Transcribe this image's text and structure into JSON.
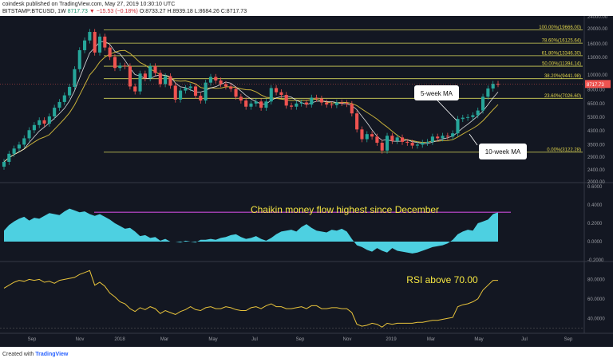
{
  "header": {
    "author": "coindesk",
    "published": "published on TradingView.com, May 27, 2019 10:30:10 UTC",
    "symbol": "BITSTAMP:BTCUSD, 1W",
    "price": "8717.73",
    "change": "▼ −15.53 (−0.18%)",
    "ohlc": "O:8733.27 H:8939.18 L:8684.26 C:8717.73"
  },
  "footer": {
    "created_with": "Created with",
    "brand": "TradingView"
  },
  "colors": {
    "background": "#131722",
    "candle_up": "#26a69a",
    "candle_down": "#ef5350",
    "fib_line": "#d6d65a",
    "ma5": "#ffffff",
    "ma10": "#c9b23a",
    "cmf_fill": "#4dd0e1",
    "cmf_line": "#c64ad6",
    "rsi_line": "#e8c33b",
    "price_tag": "#ef5350"
  },
  "chart_data": [
    {
      "type": "candlestick",
      "title": "BITSTAMP:BTCUSD, 1W",
      "y_scale": "log",
      "ylim": [
        2000,
        24000
      ],
      "y_ticks": [
        "24000.00",
        "20000.00",
        "16000.00",
        "13000.00",
        "10000.00",
        "8000.00",
        "6500.00",
        "5300.00",
        "4300.00",
        "3500.00",
        "2900.00",
        "2400.00",
        "2000.00"
      ],
      "x_ticks": [
        "Sep",
        "Nov",
        "2018",
        "Mar",
        "May",
        "Jul",
        "Sep",
        "Nov",
        "2019",
        "Mar",
        "May",
        "Jul",
        "Sep"
      ],
      "last_price": "8717.73",
      "fib_levels": [
        {
          "label": "100.00%(19666.00)",
          "value": 19666.0
        },
        {
          "label": "78.60%(16125.64)",
          "value": 16125.64
        },
        {
          "label": "61.80%(13346.30)",
          "value": 13346.3
        },
        {
          "label": "50.00%(11394.14)",
          "value": 11394.14
        },
        {
          "label": "38.20%(9441.98)",
          "value": 9441.98
        },
        {
          "label": "23.60%(7026.60)",
          "value": 7026.6
        },
        {
          "label": "0.00%(3122.28)",
          "value": 3122.28
        }
      ],
      "annotations": [
        "5-week MA",
        "10-week MA"
      ],
      "series_close": [
        2700,
        3050,
        3300,
        3500,
        3850,
        4350,
        4700,
        5050,
        4800,
        5350,
        6100,
        6650,
        7350,
        8350,
        10900,
        14500,
        16800,
        19100,
        14000,
        17800,
        15100,
        13100,
        11100,
        11500,
        11400,
        8400,
        7800,
        10200,
        9500,
        11400,
        10300,
        8700,
        9800,
        8500,
        6900,
        7900,
        8200,
        8400,
        7300,
        6800,
        8900,
        9700,
        9200,
        8700,
        8400,
        8100,
        7200,
        6800,
        6200,
        6500,
        6700,
        6100,
        6700,
        8200,
        7700,
        7400,
        6300,
        6200,
        6500,
        6600,
        6400,
        7100,
        7000,
        6600,
        6400,
        6350,
        6600,
        6550,
        6450,
        5600,
        4400,
        3800,
        4100,
        3950,
        3600,
        3200,
        4000,
        3700,
        3900,
        3650,
        3600,
        3450,
        3500,
        3600,
        3650,
        3950,
        3850,
        4000,
        3950,
        4150,
        5150,
        5250,
        5300,
        5450,
        5850,
        7200,
        8150,
        8733,
        8717
      ]
    },
    {
      "type": "area",
      "title": "Chaikin money flow highest since December",
      "ylim": [
        -0.2,
        0.6
      ],
      "y_ticks": [
        "0.6000",
        "0.4000",
        "0.2000",
        "0.0000",
        "-0.2000"
      ],
      "values": [
        0.12,
        0.18,
        0.22,
        0.25,
        0.27,
        0.23,
        0.26,
        0.25,
        0.28,
        0.31,
        0.3,
        0.29,
        0.33,
        0.36,
        0.34,
        0.32,
        0.33,
        0.3,
        0.28,
        0.3,
        0.27,
        0.24,
        0.2,
        0.17,
        0.14,
        0.15,
        0.11,
        0.06,
        0.07,
        0.04,
        0.05,
        0.01,
        0.03,
        0.0,
        0.0,
        -0.01,
        0.01,
        0.0,
        -0.01,
        0.02,
        0.02,
        0.03,
        0.02,
        0.04,
        0.05,
        0.07,
        0.08,
        0.05,
        0.03,
        0.04,
        0.06,
        0.03,
        0.01,
        0.04,
        0.08,
        0.11,
        0.12,
        0.13,
        0.11,
        0.16,
        0.19,
        0.15,
        0.12,
        0.11,
        0.1,
        0.13,
        0.12,
        0.14,
        0.11,
        0.03,
        -0.04,
        -0.06,
        -0.09,
        -0.11,
        -0.07,
        -0.1,
        -0.12,
        -0.07,
        -0.1,
        -0.11,
        -0.12,
        -0.13,
        -0.12,
        -0.1,
        -0.08,
        -0.06,
        -0.05,
        -0.04,
        -0.02,
        0.02,
        0.08,
        0.11,
        0.13,
        0.12,
        0.2,
        0.22,
        0.24,
        0.3,
        0.32
      ],
      "highlight_level": 0.32
    },
    {
      "type": "line",
      "title": "RSI above 70.00",
      "ylim": [
        28,
        95
      ],
      "y_ticks": [
        "80.0000",
        "60.0000",
        "40.0000"
      ],
      "values": [
        71,
        74,
        77,
        79,
        78,
        80,
        79,
        80,
        77,
        78,
        76,
        79,
        80,
        81,
        82,
        85,
        87,
        89,
        74,
        77,
        73,
        66,
        62,
        57,
        55,
        50,
        47,
        51,
        49,
        52,
        50,
        45,
        48,
        46,
        44,
        47,
        49,
        52,
        49,
        48,
        51,
        52,
        50,
        50,
        52,
        51,
        49,
        48,
        48,
        51,
        52,
        50,
        53,
        55,
        52,
        52,
        50,
        50,
        51,
        52,
        50,
        53,
        53,
        50,
        50,
        51,
        51,
        50,
        50,
        46,
        34,
        32,
        33,
        35,
        34,
        31,
        35,
        34,
        35,
        35,
        35,
        35,
        36,
        36,
        37,
        38,
        38,
        39,
        40,
        41,
        52,
        54,
        55,
        57,
        60,
        69,
        74,
        79,
        79
      ]
    }
  ]
}
